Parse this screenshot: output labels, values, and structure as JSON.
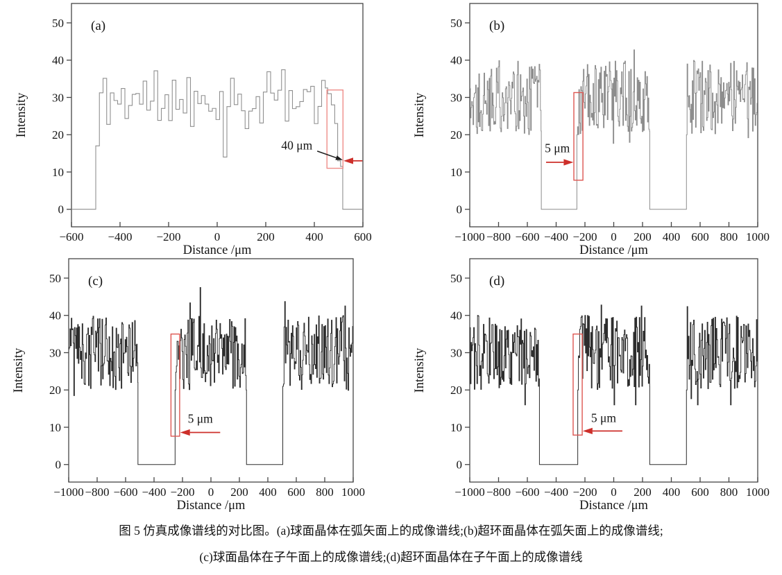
{
  "caption": {
    "line1": "图 5  仿真成像谱线的对比图。(a)球面晶体在弧矢面上的成像谱线;(b)超环面晶体在弧矢面上的成像谱线;",
    "line2": "(c)球面晶体在子午面上的成像谱线;(d)超环面晶体在子午面上的成像谱线"
  },
  "colors": {
    "axis": "#454545",
    "text": "#141414",
    "annotation_arrow_red": "#cd2f2a",
    "annotation_rect_red": "#dd5550",
    "annotation_rect_red_light": "#ee8d89",
    "black_arrow": "#1c1c1c"
  },
  "chart_data": [
    {
      "id": "a",
      "type": "line",
      "tag": "(a)",
      "xlabel": "Distance /μm",
      "ylabel": "Intensity",
      "xlim": [
        -600,
        600
      ],
      "ylim": [
        -4.7,
        55.2
      ],
      "xticks": {
        "values": [
          -600,
          -400,
          -200,
          0,
          200,
          400,
          600
        ],
        "labels": [
          "−600",
          "−400",
          "−200",
          "0",
          "200",
          "400",
          "600"
        ]
      },
      "yticks": {
        "values": [
          0,
          10,
          20,
          30,
          40,
          50
        ],
        "labels": [
          "0",
          "10",
          "20",
          "30",
          "40",
          "50"
        ]
      },
      "line_color": "#8f8f8f",
      "line_width": 1.1,
      "signal": {
        "seed": 11,
        "sample_step_um": 15,
        "segments": [
          {
            "type": "flat",
            "from": -600,
            "to": -500,
            "level": 0
          },
          {
            "type": "noise",
            "from": -500,
            "to": 455,
            "mean": 29.5,
            "spread": 8,
            "min": 14,
            "max": 42,
            "forced": [
              {
                "x": -495,
                "value": 17
              },
              {
                "x": 20,
                "value": 14
              }
            ]
          },
          {
            "type": "steps",
            "points": [
              [
                455,
                31
              ],
              [
                470,
                28
              ],
              [
                484,
                23
              ],
              [
                496,
                13
              ],
              [
                508,
                11.5
              ]
            ],
            "end": 517
          },
          {
            "type": "flat",
            "from": 517,
            "to": 600,
            "level": 0
          }
        ]
      },
      "annotation": {
        "label": "40 μm",
        "label_x": 328,
        "label_y": 16.0,
        "rect": {
          "x1": 452,
          "x2": 518,
          "y1": 11,
          "y2": 32
        },
        "rect_light": true,
        "red_arrow": {
          "y": 13.0,
          "tail_x": 598,
          "tip_x": 520
        },
        "black_arrow": {
          "x1": 412,
          "y1": 15.6,
          "x2": 517,
          "y2": 13.2
        }
      }
    },
    {
      "id": "b",
      "type": "line",
      "tag": "(b)",
      "xlabel": "Distance /μm",
      "ylabel": "Intensity",
      "xlim": [
        -1000,
        1000
      ],
      "ylim": [
        -4.7,
        55.2
      ],
      "xticks": {
        "values": [
          -1000,
          -800,
          -600,
          -400,
          -200,
          0,
          200,
          400,
          600,
          800,
          1000
        ],
        "labels": [
          "−1000",
          "−800",
          "−600",
          "−400",
          "−200",
          "0",
          "200",
          "400",
          "600",
          "800",
          "1000"
        ]
      },
      "yticks": {
        "values": [
          0,
          10,
          20,
          30,
          40,
          50
        ],
        "labels": [
          "0",
          "10",
          "20",
          "30",
          "40",
          "50"
        ]
      },
      "line_color": "#8d8d8d",
      "line_width": 1.0,
      "signal": {
        "seed": 22,
        "sample_step_um": 4.5,
        "segments": [
          {
            "type": "noise",
            "from": -1000,
            "to": -503,
            "mean": 30,
            "spread": 10,
            "min": 16,
            "max": 48,
            "forced": [
              {
                "x": -506,
                "value": 21
              }
            ]
          },
          {
            "type": "flat",
            "from": -503,
            "to": -256,
            "level": 0
          },
          {
            "type": "noise",
            "from": -256,
            "to": 250,
            "mean": 30,
            "spread": 10,
            "min": 16,
            "max": 48,
            "forced": [
              {
                "x": -254,
                "value": 20
              },
              {
                "x": 248,
                "value": 21
              }
            ]
          },
          {
            "type": "flat",
            "from": 250,
            "to": 505,
            "level": 0
          },
          {
            "type": "noise",
            "from": 505,
            "to": 1000,
            "mean": 30,
            "spread": 10,
            "min": 16,
            "max": 48,
            "forced": [
              {
                "x": 507,
                "value": 20
              }
            ]
          }
        ]
      },
      "annotation": {
        "label": "5 μm",
        "label_x": -392,
        "label_y": 15.3,
        "rect": {
          "x1": -277,
          "x2": -214,
          "y1": 7.8,
          "y2": 31.3
        },
        "rect_light": false,
        "red_arrow": {
          "y": 12.6,
          "tail_x": -470,
          "tip_x": -280
        }
      }
    },
    {
      "id": "c",
      "type": "line",
      "tag": "(c)",
      "xlabel": "Distance /μm",
      "ylabel": "Intensity",
      "xlim": [
        -1000,
        1000
      ],
      "ylim": [
        -4.7,
        55.2
      ],
      "xticks": {
        "values": [
          -1000,
          -800,
          -600,
          -400,
          -200,
          0,
          200,
          400,
          600,
          800,
          1000
        ],
        "labels": [
          "−1000",
          "−800",
          "−600",
          "−400",
          "−200",
          "0",
          "200",
          "400",
          "600",
          "800",
          "1000"
        ]
      },
      "yticks": {
        "values": [
          0,
          10,
          20,
          30,
          40,
          50
        ],
        "labels": [
          "0",
          "10",
          "20",
          "30",
          "40",
          "50"
        ]
      },
      "line_color": "#2d2d2d",
      "line_width": 1.0,
      "signal": {
        "seed": 33,
        "sample_step_um": 4.5,
        "segments": [
          {
            "type": "noise",
            "from": -1000,
            "to": -513,
            "mean": 30,
            "spread": 10,
            "min": 16,
            "max": 48,
            "forced": [
              {
                "x": -516,
                "value": 22
              }
            ]
          },
          {
            "type": "flat",
            "from": -513,
            "to": -252,
            "level": 0
          },
          {
            "type": "noise",
            "from": -252,
            "to": 250,
            "mean": 30,
            "spread": 10,
            "min": 16,
            "max": 48,
            "forced": [
              {
                "x": -250,
                "value": 20
              },
              {
                "x": 248,
                "value": 20
              }
            ]
          },
          {
            "type": "flat",
            "from": 250,
            "to": 505,
            "level": 0
          },
          {
            "type": "noise",
            "from": 505,
            "to": 1000,
            "mean": 30,
            "spread": 10,
            "min": 16,
            "max": 48,
            "forced": [
              {
                "x": 507,
                "value": 21
              }
            ]
          }
        ]
      },
      "annotation": {
        "label": "5 μm",
        "label_x": -75,
        "label_y": 11.2,
        "rect": {
          "x1": -281,
          "x2": -220,
          "y1": 7.6,
          "y2": 35
        },
        "rect_light": false,
        "red_arrow": {
          "y": 8.6,
          "tail_x": 65,
          "tip_x": -216
        }
      }
    },
    {
      "id": "d",
      "type": "line",
      "tag": "(d)",
      "xlabel": "Distance /μm",
      "ylabel": "Intensity",
      "xlim": [
        -1000,
        1000
      ],
      "ylim": [
        -4.7,
        55.2
      ],
      "xticks": {
        "values": [
          -1000,
          -800,
          -600,
          -400,
          -200,
          0,
          200,
          400,
          600,
          800,
          1000
        ],
        "labels": [
          "−1000",
          "−800",
          "−600",
          "−400",
          "−200",
          "0",
          "200",
          "400",
          "600",
          "800",
          "1000"
        ]
      },
      "yticks": {
        "values": [
          0,
          10,
          20,
          30,
          40,
          50
        ],
        "labels": [
          "0",
          "10",
          "20",
          "30",
          "40",
          "50"
        ]
      },
      "line_color": "#2d2d2d",
      "line_width": 1.0,
      "signal": {
        "seed": 44,
        "sample_step_um": 4.5,
        "segments": [
          {
            "type": "noise",
            "from": -1000,
            "to": -516,
            "mean": 30,
            "spread": 10,
            "min": 16,
            "max": 48,
            "forced": [
              {
                "x": -519,
                "value": 23
              }
            ]
          },
          {
            "type": "flat",
            "from": -516,
            "to": -250,
            "level": 0
          },
          {
            "type": "noise",
            "from": -250,
            "to": 250,
            "mean": 30,
            "spread": 10,
            "min": 16,
            "max": 48,
            "forced": [
              {
                "x": -248,
                "value": 20
              },
              {
                "x": 248,
                "value": 21
              }
            ]
          },
          {
            "type": "flat",
            "from": 250,
            "to": 505,
            "level": 0
          },
          {
            "type": "noise",
            "from": 505,
            "to": 1000,
            "mean": 30,
            "spread": 10,
            "min": 16,
            "max": 48,
            "forced": [
              {
                "x": 507,
                "value": 20
              }
            ]
          }
        ]
      },
      "annotation": {
        "label": "5 μm",
        "label_x": -70,
        "label_y": 11.4,
        "rect": {
          "x1": -282,
          "x2": -219,
          "y1": 7.9,
          "y2": 35
        },
        "rect_light": false,
        "red_arrow": {
          "y": 9.0,
          "tail_x": 60,
          "tip_x": -215
        }
      }
    }
  ]
}
